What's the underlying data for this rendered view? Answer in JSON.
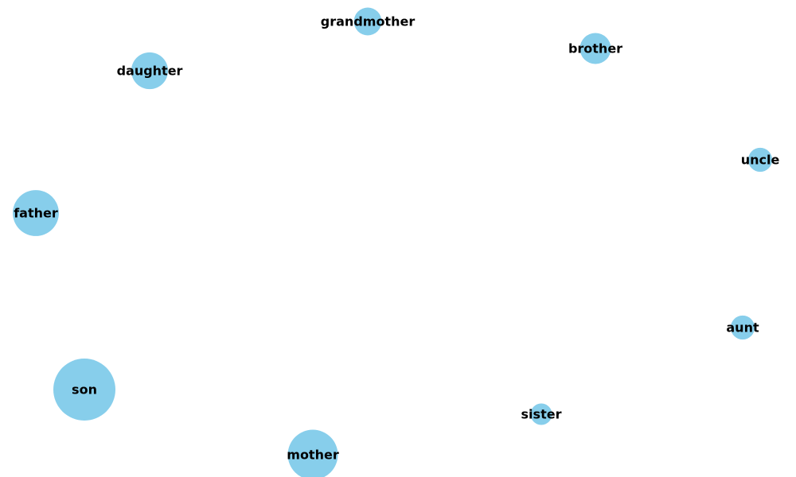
{
  "diagram": {
    "type": "network-graph",
    "node_color": "#87CEEB",
    "label_color": "#000000",
    "nodes": [
      {
        "label": "grandmother",
        "relative_size": 0.2
      },
      {
        "label": "brother",
        "relative_size": 0.25
      },
      {
        "label": "daughter",
        "relative_size": 0.35
      },
      {
        "label": "uncle",
        "relative_size": 0.15
      },
      {
        "label": "father",
        "relative_size": 0.55
      },
      {
        "label": "aunt",
        "relative_size": 0.15
      },
      {
        "label": "son",
        "relative_size": 1.0
      },
      {
        "label": "sister",
        "relative_size": 0.12
      },
      {
        "label": "mother",
        "relative_size": 0.65
      }
    ],
    "edges": []
  }
}
